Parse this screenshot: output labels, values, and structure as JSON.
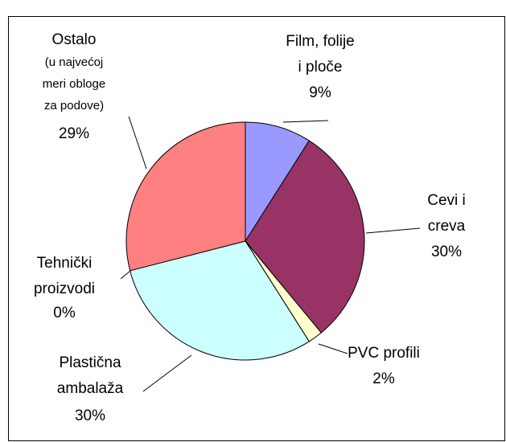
{
  "chart_data": {
    "type": "pie",
    "categories": [
      "Film, folije\ni ploče",
      "Cevi i\ncreva",
      "PVC profili",
      "Tehnički\nproizvodi",
      "Plastična\nambalaža",
      "Ostalo"
    ],
    "values": [
      9,
      30,
      2,
      0,
      30,
      29
    ],
    "value_labels": [
      "9%",
      "30%",
      "2%",
      "0%",
      "30%",
      "29%"
    ],
    "colors": [
      "#9999ff",
      "#993366",
      "#ffffcc",
      "#000080",
      "#ccffff",
      "#ff8080"
    ],
    "annotation": "(u najvećoj\nmeri obloge\nza podove)"
  }
}
